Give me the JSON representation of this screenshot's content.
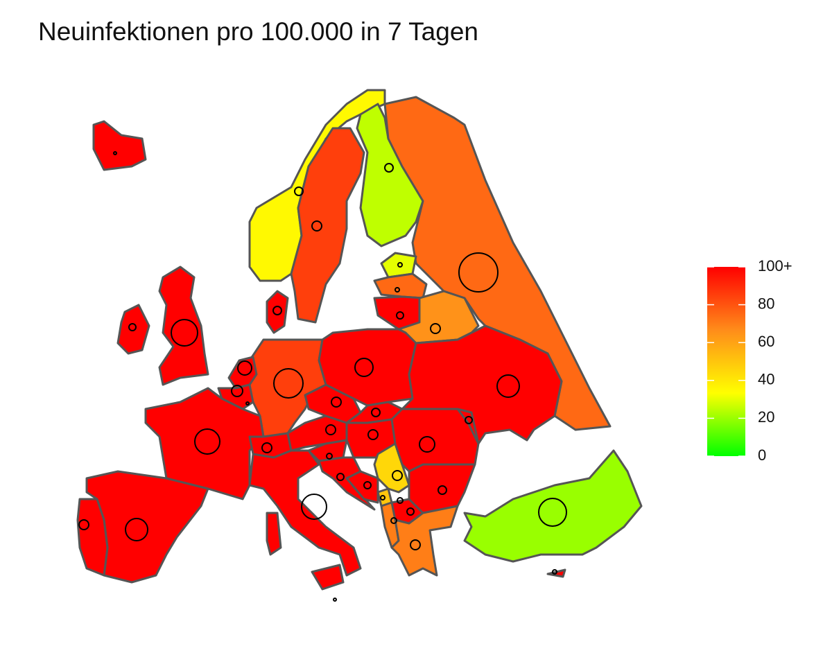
{
  "chart_data": {
    "type": "choropleth",
    "title": "Neuinfektionen pro 100.000 in 7 Tagen",
    "values": [
      100,
      35,
      85,
      25,
      75,
      30,
      75,
      100,
      65,
      100,
      100,
      100,
      85,
      100,
      100,
      100,
      100,
      100,
      100,
      100,
      100,
      100,
      100,
      100,
      100,
      100,
      100,
      100,
      100,
      45,
      50,
      100,
      70,
      70,
      100,
      100,
      100,
      20,
      100
    ],
    "lim": [
      0,
      100
    ],
    "ticks": [
      0,
      20,
      40,
      60,
      80,
      {
        "value": 100,
        "label": "100+"
      }
    ],
    "scale_colors": [
      "#00ff00",
      "#ffff00",
      "#ff8c1a",
      "#ff0000"
    ],
    "border_color": "#555555"
  }
}
